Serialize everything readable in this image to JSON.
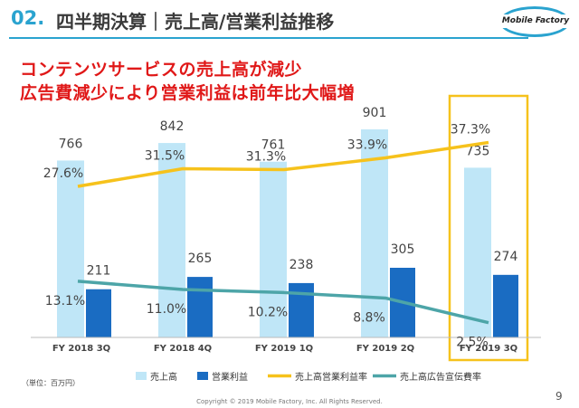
{
  "header": {
    "number": "02.",
    "title": "四半期決算｜売上高/営業利益推移",
    "logo_text": "Mobile Factory"
  },
  "headline": {
    "line1": "コンテンツサービスの売上高が減少",
    "line2": "広告費減少により営業利益は前年比大幅増"
  },
  "chart_data": {
    "type": "bar",
    "categories": [
      "FY 2018 3Q",
      "FY 2018 4Q",
      "FY 2019 1Q",
      "FY 2019 2Q",
      "FY 2019 3Q"
    ],
    "series": [
      {
        "name": "売上高",
        "kind": "bar",
        "values": [
          766,
          842,
          761,
          901,
          735
        ],
        "labels": [
          "766",
          "842",
          "761",
          "901",
          "735"
        ],
        "color": "#bfe6f7"
      },
      {
        "name": "営業利益",
        "kind": "bar",
        "values": [
          211,
          265,
          238,
          305,
          274
        ],
        "labels": [
          "211",
          "265",
          "238",
          "305",
          "274"
        ],
        "color": "#1a6cc2"
      },
      {
        "name": "売上高営業利益率",
        "kind": "line",
        "values": [
          27.6,
          31.5,
          31.3,
          33.9,
          37.3
        ],
        "labels": [
          "27.6%",
          "31.5%",
          "31.3%",
          "33.9%",
          "37.3%"
        ],
        "color": "#f6c21c"
      },
      {
        "name": "売上高広告宣伝費率",
        "kind": "line",
        "values": [
          13.1,
          11.0,
          10.2,
          8.8,
          2.5
        ],
        "labels": [
          "13.1%",
          "11.0%",
          "10.2%",
          "8.8%",
          "2.5%"
        ],
        "color": "#4da5a8"
      }
    ],
    "highlight_category": "FY 2019 3Q",
    "highlight_color": "#f6c21c",
    "grid": false
  },
  "footer": {
    "unit_note": "（単位：百万円）",
    "copyright": "Copyright © 2019 Mobile Factory, Inc. All Rights Reserved.",
    "page_number": "9"
  }
}
